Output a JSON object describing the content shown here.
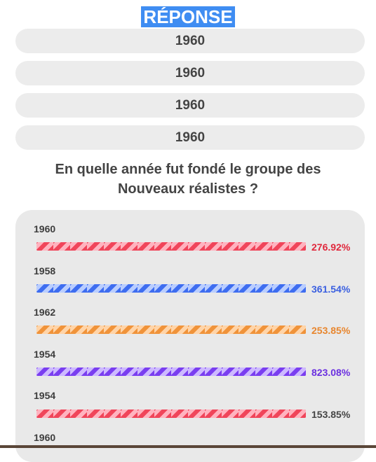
{
  "answer_title": "RÉPONSE",
  "options": [
    "1960",
    "1960",
    "1960",
    "1960"
  ],
  "question": "En quelle année fut fondé le groupe des Nouveaux réalistes ?",
  "colors": {
    "answer_bg": "#3f8df2",
    "red": "#e0283c",
    "blue": "#3a5fe0",
    "orange": "#e8862e",
    "purple": "#6a2fe0",
    "gray_text": "#444444"
  },
  "results": [
    {
      "label": "1960",
      "percent": "276.92%",
      "color": "red"
    },
    {
      "label": "1958",
      "percent": "361.54%",
      "color": "blue"
    },
    {
      "label": "1962",
      "percent": "253.85%",
      "color": "orange"
    },
    {
      "label": "1954",
      "percent": "823.08%",
      "color": "purple"
    },
    {
      "label": "1954",
      "percent": "153.85%",
      "color": "red"
    },
    {
      "label": "1960"
    }
  ]
}
